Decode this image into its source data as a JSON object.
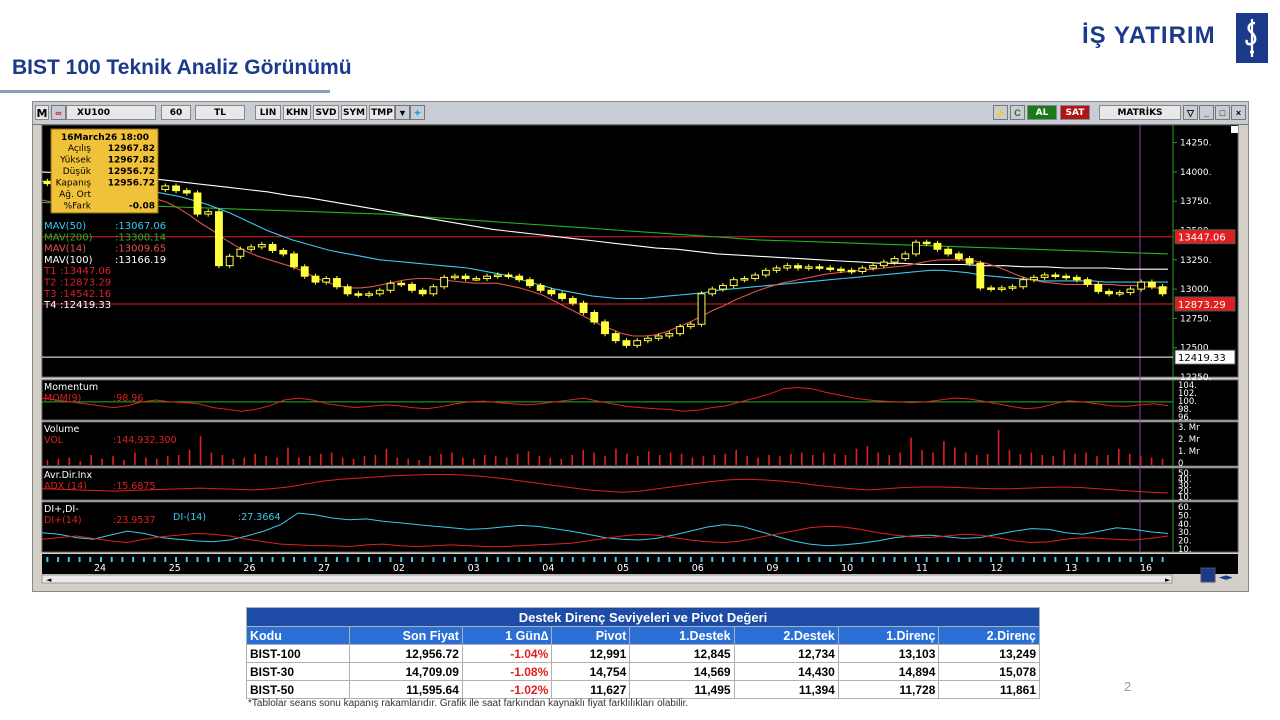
{
  "header": {
    "title": "BIST 100 Teknik Analiz Görünümü",
    "brand": "İŞ YATIRIM"
  },
  "toolbar": {
    "logo": "M",
    "symbol": "XU100",
    "period": "60",
    "currency": "TL",
    "buttons": [
      "LIN",
      "KHN",
      "SVD",
      "SYM",
      "TMP"
    ],
    "buy_label": "AL",
    "sell_label": "SAT",
    "vendor": "MATRİKS"
  },
  "ohlc_box": {
    "datetime": "16March26 18:00",
    "rows": [
      {
        "label": "Açılış",
        "value": "12967.82"
      },
      {
        "label": "Yüksek",
        "value": "12967.82"
      },
      {
        "label": "Düşük",
        "value": "12956.72"
      },
      {
        "label": "Kapanış",
        "value": "12956.72"
      },
      {
        "label": "Ağ. Ort",
        "value": ""
      },
      {
        "label": "%Fark",
        "value": "-0.08"
      }
    ]
  },
  "price_legend": [
    {
      "label": "MAV(50)",
      "value": ":13067.06",
      "color": "#3ec8f0"
    },
    {
      "label": "MAV(200)",
      "value": ":13300.14",
      "color": "#22b422"
    },
    {
      "label": "MAV(14)",
      "value": ":13009.65",
      "color": "#e05050"
    },
    {
      "label": "MAV(100)",
      "value": ":13166.19",
      "color": "#ffffff"
    },
    {
      "label": "T1",
      "value": ":13447.06",
      "color": "#e02020"
    },
    {
      "label": "T2",
      "value": ":12873.29",
      "color": "#e02020"
    },
    {
      "label": "T3",
      "value": ":14542.16",
      "color": "#e02020"
    },
    {
      "label": "T4",
      "value": ":12419.33",
      "color": "#ffffff"
    }
  ],
  "price_axis_labels": [
    "14250.",
    "14000.",
    "13750.",
    "13500.",
    "13250.",
    "13000.",
    "12750.",
    "12500.",
    "12250."
  ],
  "price_tags": [
    {
      "value": "13447.06",
      "bg": "#e02020",
      "color": "#ffffff"
    },
    {
      "value": "12873.29",
      "bg": "#e02020",
      "color": "#ffffff"
    },
    {
      "value": "12419.33",
      "bg": "#ffffff",
      "color": "#000000"
    }
  ],
  "panels": [
    {
      "title": "Momentum",
      "legend": "MOM(9)",
      "value": ":98.96",
      "axis": [
        "104.",
        "102.",
        "100.",
        "98.",
        "96."
      ]
    },
    {
      "title": "Volume",
      "legend": "VOL",
      "value": ":144,932,300",
      "axis": [
        "3. Mr",
        "2. Mr",
        "1. Mr",
        "0"
      ]
    },
    {
      "title": "Avr.Dir.Inx",
      "legend": "ADX (14)",
      "value": ":15.6875",
      "axis": [
        "50.",
        "40.",
        "30.",
        "20.",
        "10."
      ]
    },
    {
      "title": "DI+,DI-",
      "legend": "DI+(14)",
      "value": ":23.9537",
      "legend2": "DI-(14)",
      "value2": ":27.3664",
      "axis": [
        "60.",
        "50.",
        "40.",
        "30.",
        "20.",
        "10."
      ]
    }
  ],
  "date_axis": [
    "24",
    "25",
    "26",
    "27",
    "02",
    "03",
    "04",
    "05",
    "06",
    "09",
    "10",
    "11",
    "12",
    "13",
    "16"
  ],
  "chart_data": {
    "type": "candlestick",
    "title": "",
    "ylim": [
      12250,
      14400
    ],
    "series_colors": {
      "candle_up": "#ffff40",
      "candle_down": "#ffff40",
      "ma14": "#e05050",
      "ma50": "#3ec8f0",
      "ma100": "#ffffff",
      "ma200": "#22b422"
    },
    "close": [
      13900,
      13840,
      13800,
      13780,
      13760,
      13690,
      13700,
      13790,
      13820,
      13840,
      13850,
      13880,
      13840,
      13820,
      13640,
      13660,
      13200,
      13280,
      13340,
      13360,
      13380,
      13330,
      13300,
      13190,
      13110,
      13060,
      13090,
      13020,
      12960,
      12950,
      12960,
      12990,
      13050,
      13040,
      12990,
      12960,
      13020,
      13100,
      13110,
      13090,
      13090,
      13110,
      13120,
      13110,
      13080,
      13030,
      12990,
      12960,
      12920,
      12880,
      12800,
      12720,
      12620,
      12560,
      12520,
      12560,
      12580,
      12600,
      12620,
      12680,
      12700,
      12960,
      13000,
      13030,
      13080,
      13090,
      13120,
      13160,
      13180,
      13200,
      13180,
      13190,
      13180,
      13170,
      13160,
      13150,
      13180,
      13200,
      13230,
      13260,
      13300,
      13400,
      13390,
      13340,
      13300,
      13260,
      13220,
      13010,
      13000,
      13010,
      13020,
      13080,
      13100,
      13120,
      13110,
      13100,
      13080,
      13040,
      12980,
      12960,
      12970,
      13000,
      13060,
      13020,
      12960
    ],
    "ma14": [
      13760,
      13740,
      13720,
      13700,
      13690,
      13700,
      13720,
      13740,
      13760,
      13780,
      13770,
      13740,
      13690,
      13630,
      13560,
      13500,
      13430,
      13370,
      13320,
      13280,
      13250,
      13220,
      13190,
      13150,
      13100,
      13060,
      13030,
      13010,
      13010,
      13020,
      13040,
      13060,
      13080,
      13090,
      13090,
      13080,
      13070,
      13060,
      13050,
      13050,
      13050,
      13030,
      13010,
      12980,
      12950,
      12900,
      12850,
      12800,
      12750,
      12700,
      12660,
      12620,
      12600,
      12600,
      12610,
      12640,
      12680,
      12720,
      12770,
      12820,
      12860,
      12910,
      12950,
      12990,
      13020,
      13050,
      13070,
      13090,
      13110,
      13130,
      13140,
      13150,
      13160,
      13170,
      13180,
      13190,
      13200,
      13220,
      13240,
      13250,
      13250,
      13250,
      13240,
      13220,
      13190,
      13150,
      13110,
      13080,
      13060,
      13050,
      13040,
      13040,
      13040,
      13040,
      13040,
      13030,
      13030,
      13020,
      13010,
      13010
    ],
    "ma50": [
      13920,
      13910,
      13900,
      13890,
      13880,
      13870,
      13860,
      13850,
      13840,
      13830,
      13810,
      13790,
      13760,
      13730,
      13690,
      13650,
      13600,
      13550,
      13500,
      13460,
      13420,
      13390,
      13360,
      13330,
      13310,
      13290,
      13270,
      13250,
      13240,
      13230,
      13220,
      13210,
      13200,
      13190,
      13180,
      13160,
      13140,
      13120,
      13090,
      13060,
      13030,
      13000,
      12980,
      12960,
      12940,
      12930,
      12920,
      12920,
      12920,
      12930,
      12940,
      12950,
      12960,
      12970,
      12990,
      13000,
      13010,
      13020,
      13030,
      13040,
      13050,
      13060,
      13070,
      13080,
      13090,
      13100,
      13110,
      13120,
      13130,
      13140,
      13150,
      13160,
      13160,
      13150,
      13140,
      13120,
      13110,
      13100,
      13090,
      13080,
      13070,
      13070,
      13070,
      13070,
      13070,
      13060,
      13060,
      13060,
      13060,
      13060,
      13060
    ],
    "ma100": [
      14000,
      13990,
      13980,
      13970,
      13960,
      13950,
      13930,
      13910,
      13890,
      13870,
      13850,
      13830,
      13800,
      13780,
      13750,
      13720,
      13690,
      13660,
      13630,
      13600,
      13570,
      13540,
      13510,
      13490,
      13470,
      13450,
      13430,
      13410,
      13390,
      13370,
      13350,
      13340,
      13320,
      13300,
      13290,
      13280,
      13270,
      13260,
      13250,
      13240,
      13230,
      13220,
      13220,
      13210,
      13210,
      13210,
      13200,
      13200,
      13190,
      13190,
      13180,
      13180,
      13180,
      13170,
      13170,
      13170
    ],
    "ma200": [
      13740,
      13730,
      13720,
      13710,
      13700,
      13690,
      13680,
      13670,
      13660,
      13650,
      13640,
      13620,
      13600,
      13580,
      13560,
      13540,
      13520,
      13500,
      13480,
      13460,
      13440,
      13420,
      13410,
      13400,
      13390,
      13380,
      13370,
      13360,
      13350,
      13340,
      13330,
      13320,
      13310,
      13300
    ],
    "levels": [
      13447.06,
      12873.29,
      12419.33
    ],
    "momentum": [
      101,
      100.5,
      100,
      99.5,
      99,
      98.5,
      99,
      100,
      100.5,
      100,
      99.8,
      99.5,
      98.5,
      98,
      97.5,
      98,
      99,
      100.5,
      101,
      100.5,
      99.5,
      99,
      98.5,
      98.8,
      99.2,
      99,
      98.5,
      98.2,
      98.7,
      99.5,
      100,
      100.2,
      99.8,
      99.5,
      99.2,
      99.5,
      100,
      100.5,
      101,
      100.2,
      99.5,
      98.8,
      98.5,
      98.2,
      98,
      97.5,
      97.8,
      98.5,
      99,
      100,
      101,
      102,
      103.5,
      103.8,
      103.5,
      102.5,
      101.8,
      101,
      100.5,
      100.2,
      100,
      99.8,
      100,
      100.5,
      101,
      100.8,
      100.2,
      99.5,
      98.8,
      98.2,
      98.5,
      99.5,
      100.3,
      100,
      99.5,
      99,
      98.8,
      99.2,
      99.5,
      99
    ],
    "volume_mr": [
      0.4,
      0.5,
      0.6,
      0.3,
      0.8,
      0.5,
      0.7,
      0.4,
      1.0,
      0.6,
      0.5,
      0.7,
      0.8,
      1.2,
      2.3,
      1.0,
      0.8,
      0.5,
      0.6,
      0.9,
      0.7,
      0.6,
      1.4,
      0.6,
      0.7,
      0.9,
      1.0,
      0.6,
      0.5,
      0.7,
      0.8,
      1.3,
      0.6,
      0.5,
      0.4,
      0.7,
      0.9,
      1.0,
      0.6,
      0.5,
      0.8,
      0.7,
      0.6,
      0.9,
      1.1,
      0.7,
      0.6,
      0.5,
      0.8,
      1.2,
      1.0,
      0.7,
      1.3,
      0.9,
      0.7,
      1.1,
      0.8,
      1.0,
      0.9,
      0.6,
      0.7,
      0.8,
      0.9,
      1.2,
      0.7,
      0.6,
      0.8,
      0.7,
      0.9,
      1.0,
      0.8,
      1.0,
      0.9,
      0.8,
      1.3,
      1.5,
      1.0,
      0.8,
      1.0,
      2.2,
      1.2,
      1.0,
      1.9,
      1.4,
      1.0,
      0.8,
      0.9,
      2.8,
      1.2,
      0.9,
      1.0,
      0.8,
      0.7,
      1.2,
      0.9,
      1.0,
      0.7,
      0.8,
      1.3,
      0.9,
      0.7,
      0.6,
      0.5
    ],
    "adx": [
      22,
      21,
      20,
      19,
      18,
      19,
      20,
      21,
      22,
      23,
      22,
      21,
      20,
      22,
      25,
      30,
      35,
      38,
      40,
      42,
      44,
      45,
      46,
      46,
      45,
      43,
      40,
      36,
      32,
      28,
      24,
      20,
      18,
      16,
      18,
      22,
      26,
      30,
      34,
      37,
      38,
      37,
      35,
      32,
      28,
      25,
      22,
      20,
      22,
      24,
      25,
      25,
      24,
      23,
      22,
      22,
      23,
      24,
      25,
      24,
      22,
      20,
      18,
      16,
      15
    ],
    "di_plus": [
      20,
      22,
      24,
      21,
      18,
      16,
      20,
      23,
      25,
      27,
      26,
      24,
      20,
      17,
      14,
      13,
      12,
      12,
      11,
      13,
      14,
      12,
      11,
      12,
      13,
      12,
      11,
      11,
      12,
      13,
      14,
      15,
      18,
      21,
      24,
      26,
      25,
      22,
      19,
      17,
      16,
      18,
      22,
      26,
      30,
      34,
      36,
      35,
      32,
      28,
      25,
      23,
      22,
      24,
      26,
      25,
      22,
      18,
      16,
      17,
      20,
      22,
      21,
      20,
      19,
      21,
      24
    ],
    "di_minus": [
      28,
      26,
      22,
      20,
      25,
      30,
      27,
      22,
      20,
      18,
      17,
      19,
      24,
      30,
      38,
      52,
      50,
      46,
      44,
      45,
      42,
      40,
      38,
      36,
      34,
      32,
      33,
      35,
      37,
      36,
      33,
      30,
      26,
      22,
      20,
      19,
      21,
      25,
      30,
      35,
      38,
      36,
      30,
      24,
      18,
      14,
      12,
      13,
      15,
      18,
      22,
      24,
      25,
      23,
      21,
      22,
      26,
      30,
      33,
      32,
      28,
      26,
      30,
      34,
      32,
      29,
      27
    ]
  },
  "pivot_table": {
    "title": "Destek Direnç Seviyeleri ve Pivot Değeri",
    "columns": [
      "Kodu",
      "Son Fiyat",
      "1 Gün∆",
      "Pivot",
      "1.Destek",
      "2.Destek",
      "1.Direnç",
      "2.Direnç"
    ],
    "rows": [
      [
        "BIST-100",
        "12,956.72",
        "-1.04%",
        "12,991",
        "12,845",
        "12,734",
        "13,103",
        "13,249"
      ],
      [
        "BIST-30",
        "14,709.09",
        "-1.08%",
        "14,754",
        "14,569",
        "14,430",
        "14,894",
        "15,078"
      ],
      [
        "BIST-50",
        "11,595.64",
        "-1.02%",
        "11,627",
        "11,495",
        "11,394",
        "11,728",
        "11,861"
      ]
    ]
  },
  "footnote": "*Tablolar seans sonu kapanış rakamlarıdır. Grafik ile saat farkından kaynaklı fiyat farklılıkları olabilir.",
  "page_number": "2"
}
